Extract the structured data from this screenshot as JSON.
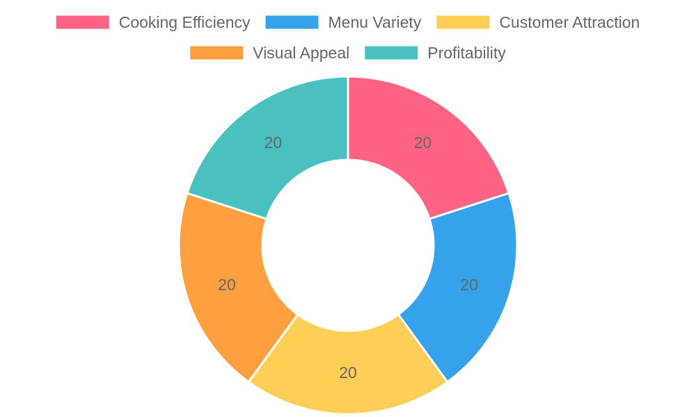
{
  "chart_data": {
    "type": "pie",
    "variant": "doughnut",
    "categories": [
      "Cooking Efficiency",
      "Menu Variety",
      "Customer Attraction",
      "Visual Appeal",
      "Profitability"
    ],
    "values": [
      20,
      20,
      20,
      20,
      20
    ],
    "colors": [
      "#FF6384",
      "#36A2EB",
      "#FFCE56",
      "#FF9F40",
      "#4BC0C0"
    ],
    "legend_position": "top",
    "data_labels": true
  }
}
